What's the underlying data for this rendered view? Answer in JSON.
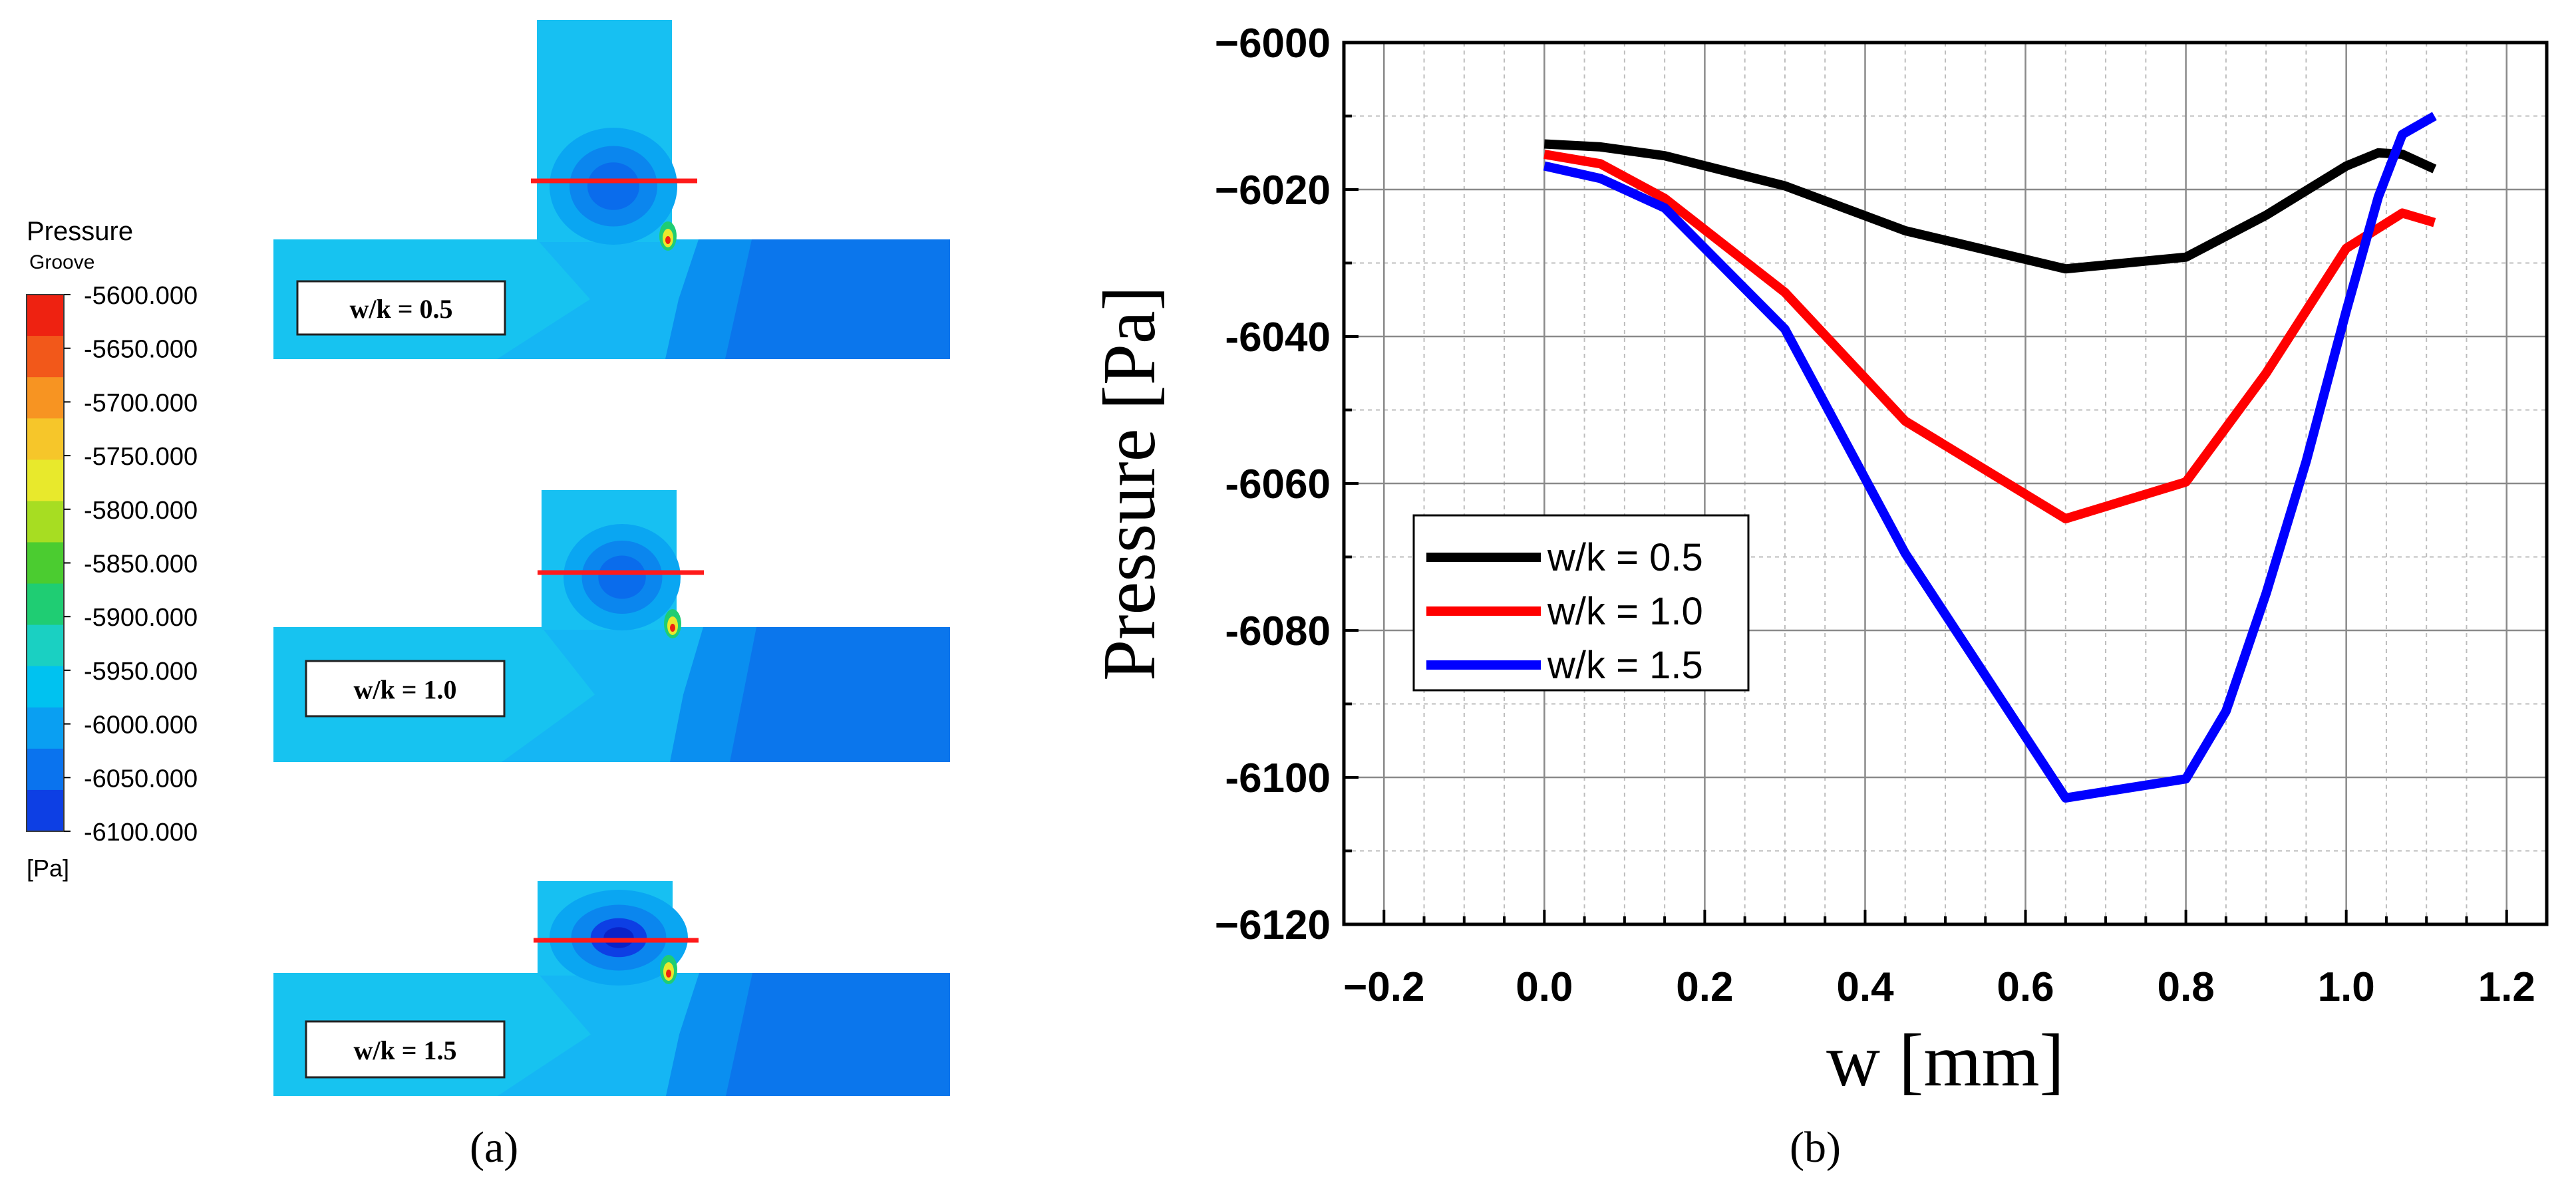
{
  "panel_a": {
    "caption": "(a)",
    "legend": {
      "title": "Pressure",
      "subtitle": "Groove",
      "unit": "[Pa]",
      "levels": [
        "-5600.000",
        "-5650.000",
        "-5700.000",
        "-5750.000",
        "-5800.000",
        "-5850.000",
        "-5900.000",
        "-5950.000",
        "-6000.000",
        "-6050.000",
        "-6100.000"
      ],
      "colors": [
        "#ee2211",
        "#f2581a",
        "#f79422",
        "#f6c62a",
        "#e8e92c",
        "#a7dd22",
        "#4bcc30",
        "#1fcd73",
        "#1ad0c2",
        "#00c2f0",
        "#0a9ff2",
        "#0a73ee",
        "#0d3fe4"
      ]
    },
    "contours": [
      {
        "label": "w/k = 0.5"
      },
      {
        "label": "w/k = 1.0"
      },
      {
        "label": "w/k = 1.5"
      }
    ]
  },
  "chart_data": {
    "type": "line",
    "caption": "(b)",
    "title": "",
    "xlabel": "w [mm]",
    "ylabel": "Pressure [Pa]",
    "xlim": [
      -0.25,
      1.25
    ],
    "ylim": [
      -6120,
      -6000
    ],
    "xticks": [
      -0.2,
      0.0,
      0.2,
      0.4,
      0.6,
      0.8,
      1.0,
      1.2
    ],
    "yticks": [
      -6000,
      -6020,
      -6040,
      -6060,
      -6080,
      -6100,
      -6120
    ],
    "x_tick_labels": [
      "−0.2",
      "0.0",
      "0.2",
      "0.4",
      "0.6",
      "0.8",
      "1.0",
      "1.2"
    ],
    "y_tick_labels": [
      "−6000",
      "−6020",
      "-6040",
      "-6060",
      "-6080",
      "-6100",
      "−6120"
    ],
    "grid": true,
    "legend_position": "center-left",
    "series": [
      {
        "name": "w/k = 0.5",
        "color": "#000000",
        "x": [
          0.0,
          0.07,
          0.15,
          0.3,
          0.45,
          0.65,
          0.8,
          0.9,
          1.0,
          1.04,
          1.07,
          1.11
        ],
        "y": [
          -6013.8,
          -6014.2,
          -6015.4,
          -6019.5,
          -6025.6,
          -6030.8,
          -6029.2,
          -6023.5,
          -6016.8,
          -6015.0,
          -6015.2,
          -6017.2
        ]
      },
      {
        "name": "w/k = 1.0",
        "color": "#ff0000",
        "x": [
          0.0,
          0.07,
          0.15,
          0.3,
          0.45,
          0.65,
          0.8,
          0.9,
          1.0,
          1.07,
          1.11
        ],
        "y": [
          -6015.2,
          -6016.5,
          -6021.2,
          -6034.0,
          -6051.5,
          -6064.8,
          -6059.8,
          -6045.0,
          -6028.0,
          -6023.2,
          -6024.5
        ]
      },
      {
        "name": "w/k = 1.5",
        "color": "#0000ff",
        "x": [
          0.0,
          0.07,
          0.15,
          0.3,
          0.45,
          0.65,
          0.8,
          0.85,
          0.9,
          0.95,
          1.0,
          1.04,
          1.07,
          1.11
        ],
        "y": [
          -6016.8,
          -6018.5,
          -6022.5,
          -6039.0,
          -6069.5,
          -6102.8,
          -6100.2,
          -6091.0,
          -6075.0,
          -6057.0,
          -6036.5,
          -6021.0,
          -6012.5,
          -6010.0
        ]
      }
    ]
  }
}
